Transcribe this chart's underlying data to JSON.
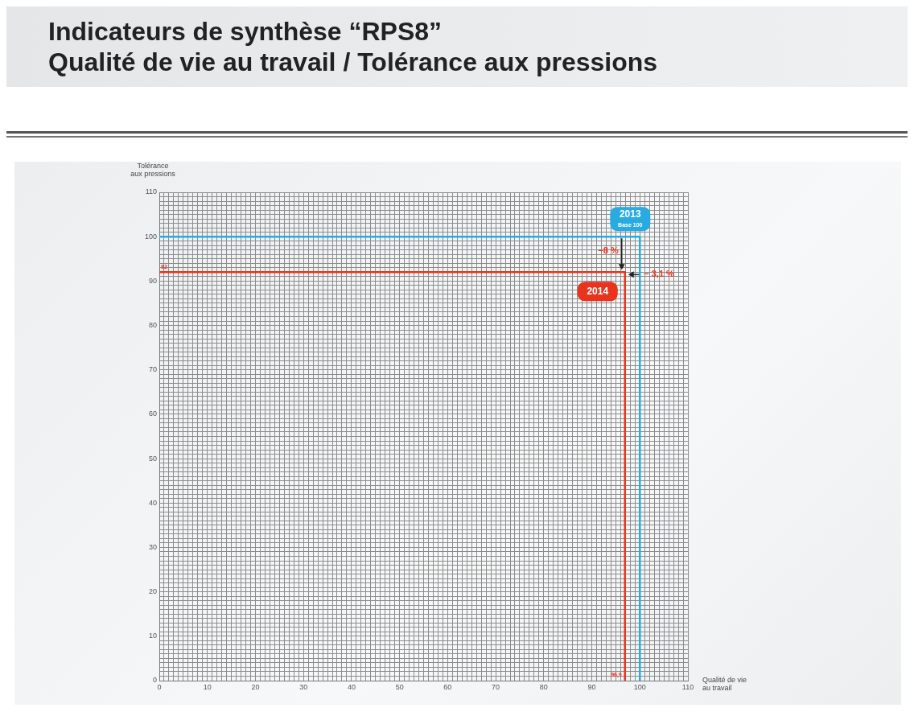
{
  "chart_data": {
    "type": "line",
    "title": "Indicateurs de synthèse “RPS8”\nQualité de vie au travail / Tolérance aux pressions",
    "xlabel": "Qualité de vie\nau travail",
    "ylabel": "Tolérance\naux pressions",
    "xlim": [
      0,
      110
    ],
    "ylim": [
      0,
      110
    ],
    "xticks": [
      0,
      {
        "value": 1,
        "label": null
      },
      {
        "value": 2,
        "label": null
      },
      {
        "value": 3,
        "label": null
      },
      {
        "value": 4,
        "label": null
      },
      {
        "value": 5,
        "label": null
      },
      {
        "value": 6,
        "label": null
      },
      {
        "value": 7,
        "label": null
      },
      {
        "value": 8,
        "label": null
      },
      {
        "value": 9,
        "label": null
      },
      10,
      {
        "value": 11,
        "label": null
      },
      {
        "value": 12,
        "label": null
      },
      {
        "value": 13,
        "label": null
      },
      {
        "value": 14,
        "label": null
      },
      {
        "value": 15,
        "label": null
      },
      {
        "value": 16,
        "label": null
      },
      {
        "value": 17,
        "label": null
      },
      {
        "value": 18,
        "label": null
      },
      {
        "value": 19,
        "label": null
      },
      20,
      {
        "value": 21,
        "label": null
      },
      {
        "value": 22,
        "label": null
      },
      {
        "value": 23,
        "label": null
      },
      {
        "value": 24,
        "label": null
      },
      {
        "value": 25,
        "label": null
      },
      {
        "value": 26,
        "label": null
      },
      {
        "value": 27,
        "label": null
      },
      {
        "value": 28,
        "label": null
      },
      {
        "value": 29,
        "label": null
      },
      30,
      {
        "value": 31,
        "label": null
      },
      {
        "value": 32,
        "label": null
      },
      {
        "value": 33,
        "label": null
      },
      {
        "value": 34,
        "label": null
      },
      {
        "value": 35,
        "label": null
      },
      {
        "value": 36,
        "label": null
      },
      {
        "value": 37,
        "label": null
      },
      {
        "value": 38,
        "label": null
      },
      {
        "value": 39,
        "label": null
      },
      40,
      {
        "value": 41,
        "label": null
      },
      {
        "value": 42,
        "label": null
      },
      {
        "value": 43,
        "label": null
      },
      {
        "value": 44,
        "label": null
      },
      {
        "value": 45,
        "label": null
      },
      {
        "value": 46,
        "label": null
      },
      {
        "value": 47,
        "label": null
      },
      {
        "value": 48,
        "label": null
      },
      {
        "value": 49,
        "label": null
      },
      50,
      {
        "value": 51,
        "label": null
      },
      {
        "value": 52,
        "label": null
      },
      {
        "value": 53,
        "label": null
      },
      {
        "value": 54,
        "label": null
      },
      {
        "value": 55,
        "label": null
      },
      {
        "value": 56,
        "label": null
      },
      {
        "value": 57,
        "label": null
      },
      {
        "value": 58,
        "label": null
      },
      {
        "value": 59,
        "label": null
      },
      60,
      {
        "value": 61,
        "label": null
      },
      {
        "value": 62,
        "label": null
      },
      {
        "value": 63,
        "label": null
      },
      {
        "value": 64,
        "label": null
      },
      {
        "value": 65,
        "label": null
      },
      {
        "value": 66,
        "label": null
      },
      {
        "value": 67,
        "label": null
      },
      {
        "value": 68,
        "label": null
      },
      {
        "value": 69,
        "label": null
      },
      70,
      {
        "value": 71,
        "label": null
      },
      {
        "value": 72,
        "label": null
      },
      {
        "value": 73,
        "label": null
      },
      {
        "value": 74,
        "label": null
      },
      {
        "value": 75,
        "label": null
      },
      {
        "value": 76,
        "label": null
      },
      {
        "value": 77,
        "label": null
      },
      {
        "value": 78,
        "label": null
      },
      {
        "value": 79,
        "label": null
      },
      80,
      {
        "value": 81,
        "label": null
      },
      {
        "value": 82,
        "label": null
      },
      {
        "value": 83,
        "label": null
      },
      {
        "value": 84,
        "label": null
      },
      {
        "value": 85,
        "label": null
      },
      {
        "value": 86,
        "label": null
      },
      {
        "value": 87,
        "label": null
      },
      {
        "value": 88,
        "label": null
      },
      {
        "value": 89,
        "label": null
      },
      90,
      {
        "value": 91,
        "label": null
      },
      {
        "value": 92,
        "label": null
      },
      {
        "value": 93,
        "label": null
      },
      {
        "value": 94,
        "label": null
      },
      {
        "value": 95,
        "label": null
      },
      {
        "value": 96,
        "label": null
      },
      {
        "value": 97,
        "label": null
      },
      {
        "value": 98,
        "label": null
      },
      {
        "value": 99,
        "label": null
      },
      100,
      {
        "value": 101,
        "label": null
      },
      {
        "value": 102,
        "label": null
      },
      {
        "value": 103,
        "label": null
      },
      {
        "value": 104,
        "label": null
      },
      {
        "value": 105,
        "label": null
      },
      {
        "value": 106,
        "label": null
      },
      {
        "value": 107,
        "label": null
      },
      {
        "value": 108,
        "label": null
      },
      {
        "value": 109,
        "label": null
      },
      110
    ],
    "yticks": [
      0,
      {
        "value": 1,
        "label": null
      },
      {
        "value": 2,
        "label": null
      },
      {
        "value": 3,
        "label": null
      },
      {
        "value": 4,
        "label": null
      },
      {
        "value": 5,
        "label": null
      },
      {
        "value": 6,
        "label": null
      },
      {
        "value": 7,
        "label": null
      },
      {
        "value": 8,
        "label": null
      },
      {
        "value": 9,
        "label": null
      },
      10,
      {
        "value": 11,
        "label": null
      },
      {
        "value": 12,
        "label": null
      },
      {
        "value": 13,
        "label": null
      },
      {
        "value": 14,
        "label": null
      },
      {
        "value": 15,
        "label": null
      },
      {
        "value": 16,
        "label": null
      },
      {
        "value": 17,
        "label": null
      },
      {
        "value": 18,
        "label": null
      },
      {
        "value": 19,
        "label": null
      },
      20,
      {
        "value": 21,
        "label": null
      },
      {
        "value": 22,
        "label": null
      },
      {
        "value": 23,
        "label": null
      },
      {
        "value": 24,
        "label": null
      },
      {
        "value": 25,
        "label": null
      },
      {
        "value": 26,
        "label": null
      },
      {
        "value": 27,
        "label": null
      },
      {
        "value": 28,
        "label": null
      },
      {
        "value": 29,
        "label": null
      },
      30,
      {
        "value": 31,
        "label": null
      },
      {
        "value": 32,
        "label": null
      },
      {
        "value": 33,
        "label": null
      },
      {
        "value": 34,
        "label": null
      },
      {
        "value": 35,
        "label": null
      },
      {
        "value": 36,
        "label": null
      },
      {
        "value": 37,
        "label": null
      },
      {
        "value": 38,
        "label": null
      },
      {
        "value": 39,
        "label": null
      },
      40,
      {
        "value": 41,
        "label": null
      },
      {
        "value": 42,
        "label": null
      },
      {
        "value": 43,
        "label": null
      },
      {
        "value": 44,
        "label": null
      },
      {
        "value": 45,
        "label": null
      },
      {
        "value": 46,
        "label": null
      },
      {
        "value": 47,
        "label": null
      },
      {
        "value": 48,
        "label": null
      },
      {
        "value": 49,
        "label": null
      },
      50,
      {
        "value": 51,
        "label": null
      },
      {
        "value": 52,
        "label": null
      },
      {
        "value": 53,
        "label": null
      },
      {
        "value": 54,
        "label": null
      },
      {
        "value": 55,
        "label": null
      },
      {
        "value": 56,
        "label": null
      },
      {
        "value": 57,
        "label": null
      },
      {
        "value": 58,
        "label": null
      },
      {
        "value": 59,
        "label": null
      },
      60,
      {
        "value": 61,
        "label": null
      },
      {
        "value": 62,
        "label": null
      },
      {
        "value": 63,
        "label": null
      },
      {
        "value": 64,
        "label": null
      },
      {
        "value": 65,
        "label": null
      },
      {
        "value": 66,
        "label": null
      },
      {
        "value": 67,
        "label": null
      },
      {
        "value": 68,
        "label": null
      },
      {
        "value": 69,
        "label": null
      },
      70,
      {
        "value": 71,
        "label": null
      },
      {
        "value": 72,
        "label": null
      },
      {
        "value": 73,
        "label": null
      },
      {
        "value": 74,
        "label": null
      },
      {
        "value": 75,
        "label": null
      },
      {
        "value": 76,
        "label": null
      },
      {
        "value": 77,
        "label": null
      },
      {
        "value": 78,
        "label": null
      },
      {
        "value": 79,
        "label": null
      },
      80,
      {
        "value": 81,
        "label": null
      },
      {
        "value": 82,
        "label": null
      },
      {
        "value": 83,
        "label": null
      },
      {
        "value": 84,
        "label": null
      },
      {
        "value": 85,
        "label": null
      },
      {
        "value": 86,
        "label": null
      },
      {
        "value": 87,
        "label": null
      },
      {
        "value": 88,
        "label": null
      },
      {
        "value": 89,
        "label": null
      },
      90,
      {
        "value": 91,
        "label": null
      },
      {
        "value": 92,
        "label": null
      },
      {
        "value": 93,
        "label": null
      },
      {
        "value": 94,
        "label": null
      },
      {
        "value": 95,
        "label": null
      },
      {
        "value": 96,
        "label": null
      },
      {
        "value": 97,
        "label": null
      },
      {
        "value": 98,
        "label": null
      },
      {
        "value": 99,
        "label": null
      },
      100,
      {
        "value": 101,
        "label": null
      },
      {
        "value": 102,
        "label": null
      },
      {
        "value": 103,
        "label": null
      },
      {
        "value": 104,
        "label": null
      },
      {
        "value": 105,
        "label": null
      },
      {
        "value": 106,
        "label": null
      },
      {
        "value": 107,
        "label": null
      },
      {
        "value": 108,
        "label": null
      },
      {
        "value": 109,
        "label": null
      },
      110
    ],
    "series": [
      {
        "name": "2013",
        "color": "#29abe2",
        "x": [
          0,
          100,
          100
        ],
        "values": [
          100,
          100,
          0
        ]
      },
      {
        "name": "2014",
        "color": "#e8341c",
        "x": [
          0,
          96.9,
          96.9
        ],
        "values": [
          92,
          92,
          0
        ]
      }
    ],
    "annotations": [
      {
        "text": "Base 100",
        "x": 100,
        "y": 100
      },
      {
        "text": "−8 %",
        "x": 96.9,
        "y": 92
      },
      {
        "text": "− 3,1 %",
        "x": 96.9,
        "y": 92
      },
      {
        "text": "92",
        "x": 0,
        "y": 92
      },
      {
        "text": "96,9",
        "x": 96.9,
        "y": 0
      }
    ],
    "grid": true,
    "legend": false,
    "marker": "none",
    "line_style": "solid"
  }
}
